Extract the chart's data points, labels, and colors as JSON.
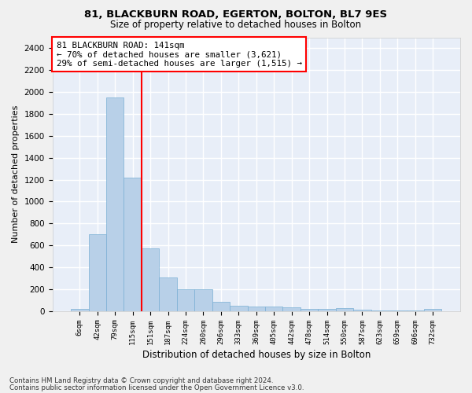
{
  "title": "81, BLACKBURN ROAD, EGERTON, BOLTON, BL7 9ES",
  "subtitle": "Size of property relative to detached houses in Bolton",
  "xlabel": "Distribution of detached houses by size in Bolton",
  "ylabel": "Number of detached properties",
  "bar_color": "#b8d0e8",
  "bar_edge_color": "#7aafd4",
  "background_color": "#e8eef8",
  "fig_background": "#f0f0f0",
  "grid_color": "#ffffff",
  "categories": [
    "6sqm",
    "42sqm",
    "79sqm",
    "115sqm",
    "151sqm",
    "187sqm",
    "224sqm",
    "260sqm",
    "296sqm",
    "333sqm",
    "369sqm",
    "405sqm",
    "442sqm",
    "478sqm",
    "514sqm",
    "550sqm",
    "587sqm",
    "623sqm",
    "659sqm",
    "696sqm",
    "732sqm"
  ],
  "values": [
    15,
    700,
    1950,
    1220,
    575,
    305,
    200,
    200,
    80,
    45,
    38,
    38,
    30,
    15,
    15,
    25,
    10,
    5,
    5,
    5,
    20
  ],
  "ylim": [
    0,
    2500
  ],
  "yticks": [
    0,
    200,
    400,
    600,
    800,
    1000,
    1200,
    1400,
    1600,
    1800,
    2000,
    2200,
    2400
  ],
  "property_line_x": 3.5,
  "annotation_line1": "81 BLACKBURN ROAD: 141sqm",
  "annotation_line2": "← 70% of detached houses are smaller (3,621)",
  "annotation_line3": "29% of semi-detached houses are larger (1,515) →",
  "footnote1": "Contains HM Land Registry data © Crown copyright and database right 2024.",
  "footnote2": "Contains public sector information licensed under the Open Government Licence v3.0."
}
